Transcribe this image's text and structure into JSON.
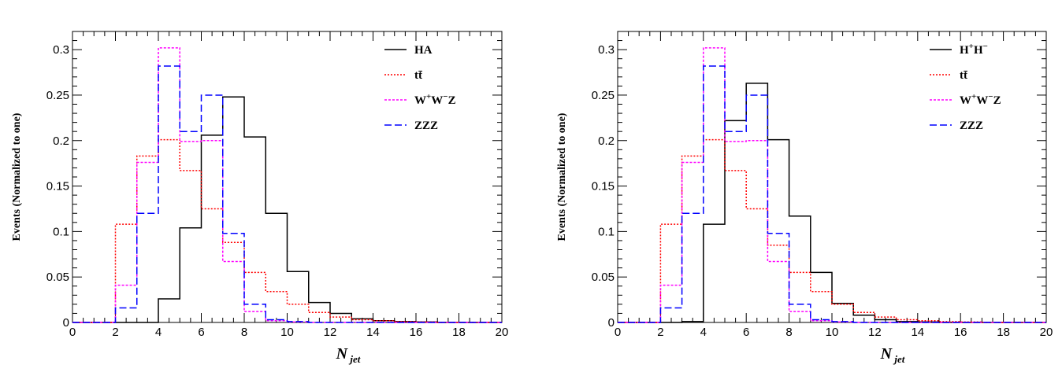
{
  "chart_data": [
    {
      "type": "histogram",
      "title": "",
      "xlabel_main": "N",
      "xlabel_sub": "jet",
      "ylabel": "Events (Normalized to one)",
      "xlim": [
        0,
        20
      ],
      "ylim": [
        0,
        0.32
      ],
      "xticks": [
        0,
        2,
        4,
        6,
        8,
        10,
        12,
        14,
        16,
        18,
        20
      ],
      "yticks": [
        0,
        0.05,
        0.1,
        0.15,
        0.2,
        0.25,
        0.3
      ],
      "ytick_labels": [
        "0",
        "0.05",
        "0.1",
        "0.15",
        "0.2",
        "0.25",
        "0.3"
      ],
      "bin_edges": [
        0,
        1,
        2,
        3,
        4,
        5,
        6,
        7,
        8,
        9,
        10,
        11,
        12,
        13,
        14,
        15,
        16,
        17,
        18,
        19,
        20
      ],
      "legend_position": "top-right",
      "series": [
        {
          "name": "HA",
          "label_main": "HA",
          "label_sup1": "",
          "label_mid": "",
          "label_sup2": "",
          "color": "#000000",
          "dash": "solid",
          "values": [
            0,
            0,
            0,
            0,
            0.026,
            0.104,
            0.206,
            0.248,
            0.204,
            0.12,
            0.056,
            0.022,
            0.01,
            0.004,
            0.002,
            0.001,
            0.0005,
            0,
            0,
            0
          ]
        },
        {
          "name": "tt̄",
          "label_main": "tt̄",
          "label_sup1": "",
          "label_mid": "",
          "label_sup2": "",
          "color": "#ff0000",
          "dash": "dotted",
          "values": [
            0,
            0,
            0.108,
            0.183,
            0.201,
            0.167,
            0.125,
            0.088,
            0.055,
            0.034,
            0.02,
            0.011,
            0.006,
            0.003,
            0.002,
            0.001,
            0.0005,
            0,
            0,
            0
          ]
        },
        {
          "name": "W⁺W⁻Z",
          "label_main": "W",
          "label_sup1": "+",
          "label_mid": "W",
          "label_sup2": "−",
          "label_tail": "Z",
          "color": "#ff00ff",
          "dash": "dashdot",
          "values": [
            0,
            0,
            0.041,
            0.176,
            0.302,
            0.199,
            0.2,
            0.067,
            0.012,
            0.002,
            0.0005,
            0,
            0,
            0,
            0,
            0,
            0,
            0,
            0,
            0
          ]
        },
        {
          "name": "ZZZ",
          "label_main": "ZZZ",
          "label_sup1": "",
          "label_mid": "",
          "label_sup2": "",
          "color": "#0000ff",
          "dash": "dashed",
          "values": [
            0,
            0,
            0.016,
            0.12,
            0.282,
            0.21,
            0.25,
            0.098,
            0.02,
            0.003,
            0.001,
            0,
            0,
            0,
            0,
            0,
            0,
            0,
            0,
            0
          ]
        }
      ]
    },
    {
      "type": "histogram",
      "title": "",
      "xlabel_main": "N",
      "xlabel_sub": "jet",
      "ylabel": "Events (Normalized to one)",
      "xlim": [
        0,
        20
      ],
      "ylim": [
        0,
        0.32
      ],
      "xticks": [
        0,
        2,
        4,
        6,
        8,
        10,
        12,
        14,
        16,
        18,
        20
      ],
      "yticks": [
        0,
        0.05,
        0.1,
        0.15,
        0.2,
        0.25,
        0.3
      ],
      "ytick_labels": [
        "0",
        "0.05",
        "0.1",
        "0.15",
        "0.2",
        "0.25",
        "0.3"
      ],
      "bin_edges": [
        0,
        1,
        2,
        3,
        4,
        5,
        6,
        7,
        8,
        9,
        10,
        11,
        12,
        13,
        14,
        15,
        16,
        17,
        18,
        19,
        20
      ],
      "legend_position": "top-right",
      "series": [
        {
          "name": "H⁺H⁻",
          "label_main": "H",
          "label_sup1": "+",
          "label_mid": "H",
          "label_sup2": "−",
          "color": "#000000",
          "dash": "solid",
          "values": [
            0,
            0,
            0,
            0.001,
            0.108,
            0.222,
            0.263,
            0.201,
            0.117,
            0.055,
            0.021,
            0.008,
            0.003,
            0.001,
            0.0005,
            0,
            0,
            0,
            0,
            0
          ]
        },
        {
          "name": "tt̄",
          "label_main": "tt̄",
          "label_sup1": "",
          "label_mid": "",
          "label_sup2": "",
          "color": "#ff0000",
          "dash": "dotted",
          "values": [
            0,
            0,
            0.108,
            0.183,
            0.201,
            0.167,
            0.125,
            0.085,
            0.055,
            0.034,
            0.02,
            0.011,
            0.006,
            0.003,
            0.002,
            0.001,
            0.0005,
            0,
            0,
            0
          ]
        },
        {
          "name": "W⁺W⁻Z",
          "label_main": "W",
          "label_sup1": "+",
          "label_mid": "W",
          "label_sup2": "−",
          "label_tail": "Z",
          "color": "#ff00ff",
          "dash": "dashdot",
          "values": [
            0,
            0,
            0.041,
            0.176,
            0.302,
            0.199,
            0.2,
            0.067,
            0.012,
            0.002,
            0.0005,
            0,
            0,
            0,
            0,
            0,
            0,
            0,
            0,
            0
          ]
        },
        {
          "name": "ZZZ",
          "label_main": "ZZZ",
          "label_sup1": "",
          "label_mid": "",
          "label_sup2": "",
          "color": "#0000ff",
          "dash": "dashed",
          "values": [
            0,
            0,
            0.016,
            0.12,
            0.282,
            0.21,
            0.25,
            0.098,
            0.02,
            0.003,
            0.001,
            0,
            0,
            0,
            0,
            0,
            0,
            0,
            0,
            0
          ]
        }
      ]
    }
  ]
}
